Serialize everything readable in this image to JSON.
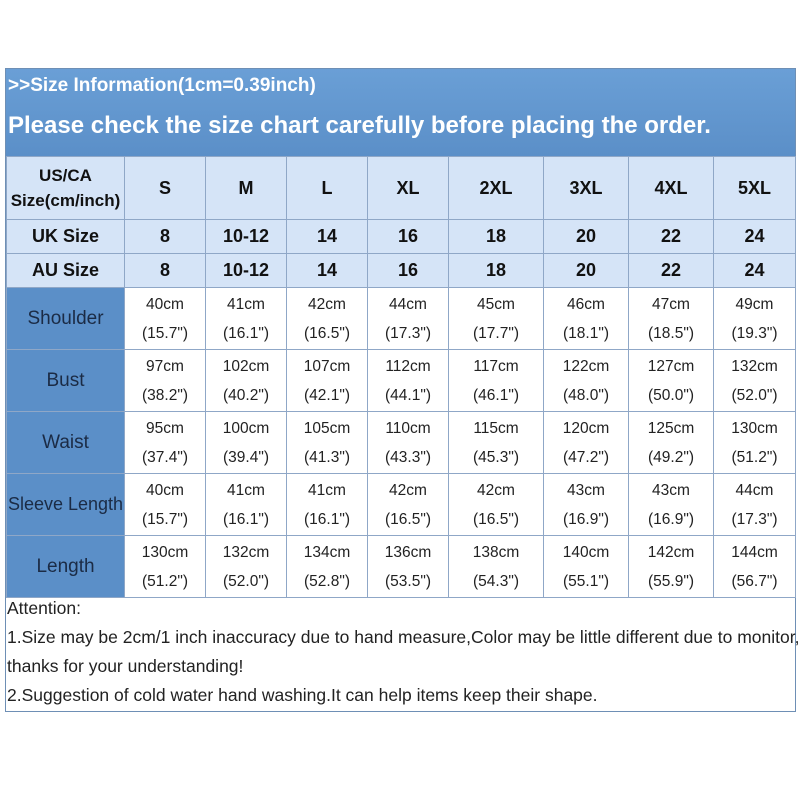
{
  "header": {
    "info": ">>Size Information(1cm=0.39inch)",
    "notice": "Please check the size chart carefully before placing the order."
  },
  "size_row": {
    "label_line1": "US/CA",
    "label_line2": "Size(cm/inch)",
    "sizes": [
      "S",
      "M",
      "L",
      "XL",
      "2XL",
      "3XL",
      "4XL",
      "5XL"
    ]
  },
  "uk_row": {
    "label": "UK Size",
    "values": [
      "8",
      "10-12",
      "14",
      "16",
      "18",
      "20",
      "22",
      "24"
    ]
  },
  "au_row": {
    "label": "AU Size",
    "values": [
      "8",
      "10-12",
      "14",
      "16",
      "18",
      "20",
      "22",
      "24"
    ]
  },
  "measurements": [
    {
      "label": "Shoulder",
      "cm": [
        "40cm",
        "41cm",
        "42cm",
        "44cm",
        "45cm",
        "46cm",
        "47cm",
        "49cm"
      ],
      "inch": [
        "(15.7\")",
        "(16.1\")",
        "(16.5\")",
        "(17.3\")",
        "(17.7\")",
        "(18.1\")",
        "(18.5\")",
        "(19.3\")"
      ]
    },
    {
      "label": "Bust",
      "cm": [
        "97cm",
        "102cm",
        "107cm",
        "112cm",
        "117cm",
        "122cm",
        "127cm",
        "132cm"
      ],
      "inch": [
        "(38.2\")",
        "(40.2\")",
        "(42.1\")",
        "(44.1\")",
        "(46.1\")",
        "(48.0\")",
        "(50.0\")",
        "(52.0\")"
      ]
    },
    {
      "label": "Waist",
      "cm": [
        "95cm",
        "100cm",
        "105cm",
        "110cm",
        "115cm",
        "120cm",
        "125cm",
        "130cm"
      ],
      "inch": [
        "(37.4\")",
        "(39.4\")",
        "(41.3\")",
        "(43.3\")",
        "(45.3\")",
        "(47.2\")",
        "(49.2\")",
        "(51.2\")"
      ]
    },
    {
      "label": "Sleeve Length",
      "cm": [
        "40cm",
        "41cm",
        "41cm",
        "42cm",
        "42cm",
        "43cm",
        "43cm",
        "44cm"
      ],
      "inch": [
        "(15.7\")",
        "(16.1\")",
        "(16.1\")",
        "(16.5\")",
        "(16.5\")",
        "(16.9\")",
        "(16.9\")",
        "(17.3\")"
      ]
    },
    {
      "label": "Length",
      "cm": [
        "130cm",
        "132cm",
        "134cm",
        "136cm",
        "138cm",
        "140cm",
        "142cm",
        "144cm"
      ],
      "inch": [
        "(51.2\")",
        "(52.0\")",
        "(52.8\")",
        "(53.5\")",
        "(54.3\")",
        "(55.1\")",
        "(55.9\")",
        "(56.7\")"
      ]
    }
  ],
  "notes": {
    "title": "Attention:",
    "line1a": "1.Size may be 2cm/1 inch inaccuracy due to hand measure,Color may be little different due to monitor,",
    "line1b": "thanks for your understanding!",
    "line2": "2.Suggestion of cold water hand washing.It can help items keep their shape."
  },
  "colors": {
    "banner": "#5b8fc8",
    "header_row": "#d5e4f7",
    "label_col": "#5b8fc8",
    "grid": "#8fa7c7"
  }
}
